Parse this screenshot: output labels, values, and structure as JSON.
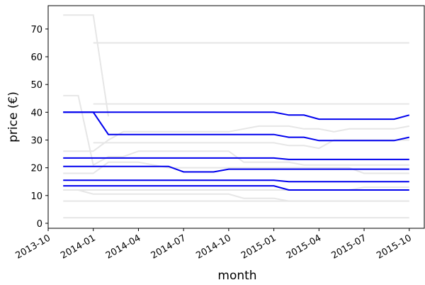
{
  "chart_data": {
    "type": "line",
    "x_label": "month",
    "y_label": "price (€)",
    "x": [
      "2013-11",
      "2013-12",
      "2014-01",
      "2014-02",
      "2014-03",
      "2014-04",
      "2014-05",
      "2014-06",
      "2014-07",
      "2014-08",
      "2014-09",
      "2014-10",
      "2014-11",
      "2014-12",
      "2015-01",
      "2015-02",
      "2015-03",
      "2015-04",
      "2015-05",
      "2015-06",
      "2015-07",
      "2015-08",
      "2015-09",
      "2015-10"
    ],
    "xlim": [
      "2013-10",
      "2015-11"
    ],
    "xticks": [
      "2013-10",
      "2014-01",
      "2014-04",
      "2014-07",
      "2014-10",
      "2015-01",
      "2015-04",
      "2015-07",
      "2015-10"
    ],
    "ylim": [
      -1.8,
      78.4
    ],
    "yticks": [
      0,
      10,
      20,
      30,
      40,
      50,
      60,
      70
    ],
    "grid": false,
    "series": [
      {
        "color": "#e6e6e6",
        "values": [
          75,
          75,
          75,
          38.5,
          null,
          null,
          null,
          null,
          null,
          null,
          null,
          null,
          null,
          null,
          null,
          null,
          null,
          null,
          null,
          null,
          null,
          null,
          null,
          null
        ]
      },
      {
        "color": "#e6e6e6",
        "values": [
          null,
          null,
          65,
          65,
          65,
          65,
          65,
          65,
          65,
          65,
          65,
          65,
          65,
          65,
          65,
          65,
          65,
          65,
          65,
          65,
          65,
          65,
          65,
          65
        ]
      },
      {
        "color": "#e6e6e6",
        "values": [
          46,
          46,
          21,
          24,
          24,
          26,
          26,
          26,
          26,
          26,
          26,
          26,
          22,
          22,
          22,
          22,
          21,
          21,
          21,
          21,
          21,
          21,
          21,
          21
        ]
      },
      {
        "color": "#e6e6e6",
        "values": [
          null,
          null,
          43,
          43,
          43,
          43,
          43,
          43,
          43,
          43,
          43,
          43,
          43,
          43,
          43,
          43,
          43,
          43,
          43,
          43,
          43,
          43,
          43,
          43
        ]
      },
      {
        "color": "#e6e6e6",
        "values": [
          26,
          26,
          26,
          30,
          33,
          33,
          33,
          33,
          33,
          33,
          33,
          33,
          34,
          35,
          35,
          35,
          34,
          34,
          33,
          34,
          34,
          34,
          34,
          35
        ]
      },
      {
        "color": "#e6e6e6",
        "values": [
          null,
          null,
          29,
          29,
          29,
          29,
          29,
          29,
          29,
          29,
          29,
          29,
          29,
          29,
          29,
          28,
          28,
          27,
          30,
          30,
          30,
          30,
          30,
          30
        ]
      },
      {
        "color": "#e6e6e6",
        "values": [
          18,
          18,
          18,
          22,
          22,
          22,
          21,
          20,
          20,
          20,
          20,
          20,
          20,
          20,
          20,
          20,
          20,
          20,
          20,
          20,
          18,
          18,
          18,
          18
        ]
      },
      {
        "color": "#e6e6e6",
        "values": [
          12,
          12,
          12,
          12,
          12,
          12,
          12,
          12,
          12,
          12,
          12,
          12,
          12,
          12,
          12,
          12,
          12,
          12,
          12,
          12,
          13,
          13,
          13,
          13
        ]
      },
      {
        "color": "#e6e6e6",
        "values": [
          12,
          12,
          10.5,
          10.5,
          10.5,
          10.5,
          10.5,
          10.5,
          10.5,
          10.5,
          10.5,
          10.5,
          9,
          9,
          9,
          8,
          8,
          8,
          8,
          8,
          8,
          8,
          8,
          8
        ]
      },
      {
        "color": "#e6e6e6",
        "values": [
          8,
          8,
          8,
          8,
          8,
          8,
          8,
          8,
          8,
          8,
          8,
          8,
          8,
          8,
          8,
          8,
          8,
          8,
          8,
          8,
          8,
          8,
          8,
          8
        ]
      },
      {
        "color": "#e6e6e6",
        "values": [
          2,
          2,
          2,
          2,
          2,
          2,
          2,
          2,
          2,
          2,
          2,
          2,
          2,
          2,
          2,
          2,
          2,
          2,
          2,
          2,
          2,
          2,
          2,
          2
        ]
      },
      {
        "color": "#0000ee",
        "values": [
          40,
          40,
          40,
          40,
          40,
          40,
          40,
          40,
          40,
          40,
          40,
          40,
          40,
          40,
          40,
          39,
          39,
          37.5,
          37.5,
          37.5,
          37.5,
          37.5,
          37.5,
          39
        ]
      },
      {
        "color": "#0000ee",
        "values": [
          40,
          40,
          40,
          32,
          32,
          32,
          32,
          32,
          32,
          32,
          32,
          32,
          32,
          32,
          32,
          31,
          31,
          29.8,
          29.8,
          29.8,
          29.8,
          29.8,
          29.8,
          31
        ]
      },
      {
        "color": "#0000ee",
        "values": [
          23.5,
          23.5,
          23.5,
          23.5,
          23.5,
          23.5,
          23.5,
          23.5,
          23.5,
          23.5,
          23.5,
          23.5,
          23.5,
          23.5,
          23.5,
          23,
          23,
          23,
          23,
          23,
          23,
          23,
          23,
          23
        ]
      },
      {
        "color": "#0000ee",
        "values": [
          20.5,
          20.5,
          20.5,
          20.5,
          20.5,
          20.5,
          20.5,
          20.5,
          18.5,
          18.5,
          18.5,
          19.5,
          19.5,
          19.5,
          19.5,
          19.5,
          19.5,
          19.5,
          19.5,
          19.5,
          19.5,
          19.5,
          19.5,
          19.5
        ]
      },
      {
        "color": "#0000ee",
        "values": [
          15.5,
          15.5,
          15.5,
          15.5,
          15.5,
          15.5,
          15.5,
          15.5,
          15.5,
          15.5,
          15.5,
          15.5,
          15.5,
          15.5,
          15.5,
          15,
          15,
          15,
          15,
          15,
          15,
          15,
          15,
          15
        ]
      },
      {
        "color": "#0000ee",
        "values": [
          13.5,
          13.5,
          13.5,
          13.5,
          13.5,
          13.5,
          13.5,
          13.5,
          13.5,
          13.5,
          13.5,
          13.5,
          13.5,
          13.5,
          13.5,
          12,
          12,
          12,
          12,
          12,
          12,
          12,
          12,
          12
        ]
      }
    ]
  }
}
